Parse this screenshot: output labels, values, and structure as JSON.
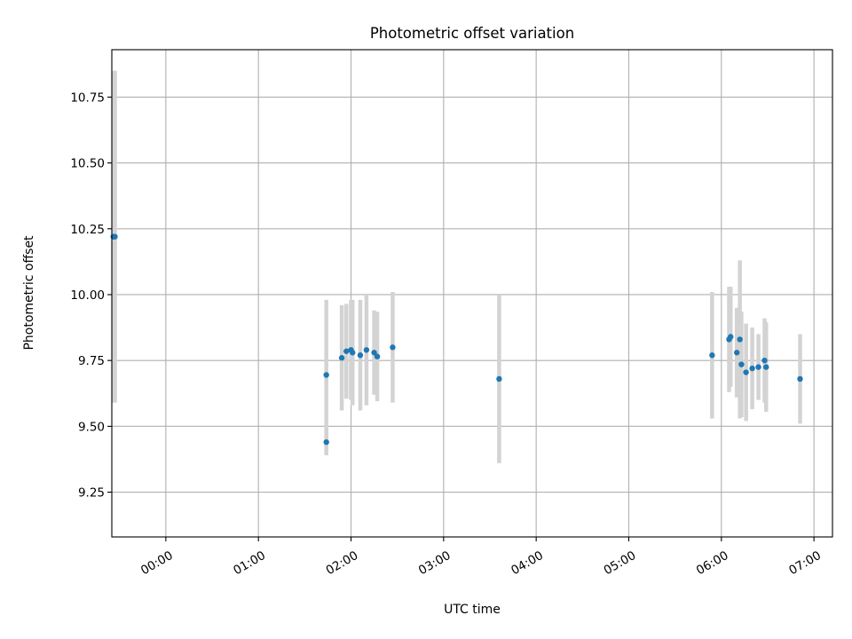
{
  "chart_data": {
    "type": "scatter",
    "title": "Photometric offset variation",
    "xlabel": "UTC time",
    "ylabel": "Photometric offset",
    "x_unit": "UTC time (HH:MM)",
    "xlim": [
      "23:25",
      "07:12"
    ],
    "ylim": [
      9.08,
      10.93
    ],
    "x_ticks": [
      "00:00",
      "01:00",
      "02:00",
      "03:00",
      "04:00",
      "05:00",
      "06:00",
      "07:00"
    ],
    "y_ticks": [
      "9.25",
      "9.50",
      "9.75",
      "10.00",
      "10.25",
      "10.50",
      "10.75"
    ],
    "x_tick_rotation_deg": 30,
    "grid": true,
    "marker_color": "#1f77b4",
    "errorbar_color": "#d3d3d3",
    "points": [
      {
        "time": "23:26",
        "y": 10.22,
        "err": 0.63
      },
      {
        "time": "23:27",
        "y": 10.22,
        "err": 0.63
      },
      {
        "time": "01:44",
        "y": 9.44,
        "err": 0.05
      },
      {
        "time": "01:44",
        "y": 9.695,
        "err": 0.285
      },
      {
        "time": "01:54",
        "y": 9.76,
        "err": 0.2
      },
      {
        "time": "01:57",
        "y": 9.785,
        "err": 0.18
      },
      {
        "time": "02:00",
        "y": 9.79,
        "err": 0.19
      },
      {
        "time": "02:01",
        "y": 9.78,
        "err": 0.2
      },
      {
        "time": "02:06",
        "y": 9.77,
        "err": 0.21
      },
      {
        "time": "02:10",
        "y": 9.79,
        "err": 0.21
      },
      {
        "time": "02:15",
        "y": 9.78,
        "err": 0.16
      },
      {
        "time": "02:17",
        "y": 9.765,
        "err": 0.17
      },
      {
        "time": "02:27",
        "y": 9.8,
        "err": 0.21
      },
      {
        "time": "03:36",
        "y": 9.68,
        "err": 0.32
      },
      {
        "time": "05:54",
        "y": 9.77,
        "err": 0.24
      },
      {
        "time": "06:05",
        "y": 9.83,
        "err": 0.2
      },
      {
        "time": "06:06",
        "y": 9.84,
        "err": 0.19
      },
      {
        "time": "06:10",
        "y": 9.78,
        "err": 0.17
      },
      {
        "time": "06:12",
        "y": 9.83,
        "err": 0.3
      },
      {
        "time": "06:13",
        "y": 9.735,
        "err": 0.2
      },
      {
        "time": "06:16",
        "y": 9.705,
        "err": 0.185
      },
      {
        "time": "06:20",
        "y": 9.72,
        "err": 0.155
      },
      {
        "time": "06:24",
        "y": 9.725,
        "err": 0.125
      },
      {
        "time": "06:28",
        "y": 9.75,
        "err": 0.16
      },
      {
        "time": "06:29",
        "y": 9.725,
        "err": 0.17
      },
      {
        "time": "06:51",
        "y": 9.68,
        "err": 0.17
      }
    ]
  }
}
